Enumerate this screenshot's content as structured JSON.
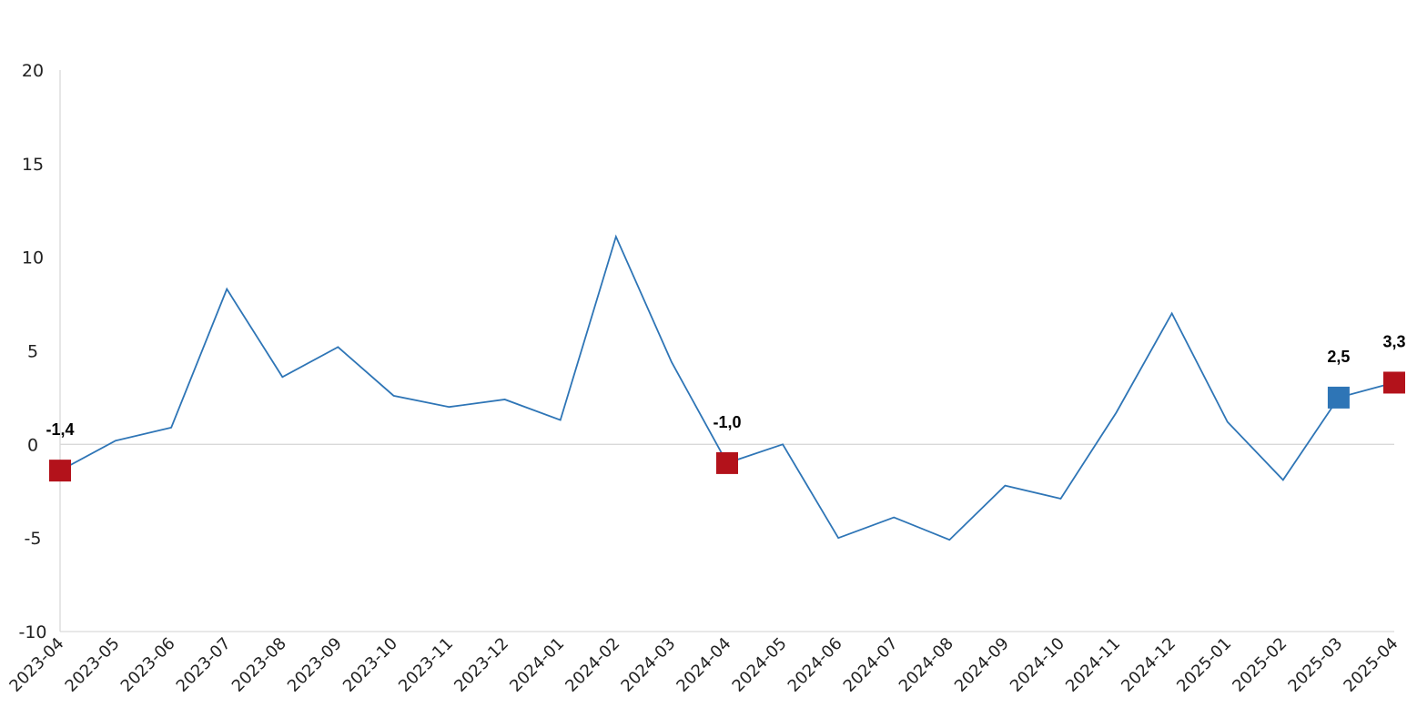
{
  "chart_data": {
    "type": "line",
    "title": "",
    "xlabel": "",
    "ylabel": "",
    "ylim": [
      -10,
      20
    ],
    "yticks": [
      "20",
      "15",
      "10",
      "5",
      "0",
      "-5",
      "-10"
    ],
    "ytick_values": [
      20,
      15,
      10,
      5,
      0,
      -5,
      -10
    ],
    "grid": false,
    "zero_line": true,
    "legend": "none",
    "line_color": "#2e75b6",
    "highlight_colors": {
      "red": "#b3121b",
      "blue": "#2e75b6"
    },
    "categories": [
      "2023-04",
      "2023-05",
      "2023-06",
      "2023-07",
      "2023-08",
      "2023-09",
      "2023-10",
      "2023-11",
      "2023-12",
      "2024-01",
      "2024-02",
      "2024-03",
      "2024-04",
      "2024-05",
      "2024-06",
      "2024-07",
      "2024-08",
      "2024-09",
      "2024-10",
      "2024-11",
      "2024-12",
      "2025-01",
      "2025-02",
      "2025-03",
      "2025-04"
    ],
    "series": [
      {
        "values": [
          -1.4,
          0.2,
          0.9,
          8.3,
          3.6,
          5.2,
          2.6,
          2.0,
          2.4,
          1.3,
          11.1,
          4.4,
          -1.0,
          0.0,
          -5.0,
          -3.9,
          -5.1,
          -2.2,
          -2.9,
          1.7,
          7.0,
          1.2,
          -1.9,
          2.5,
          3.3
        ]
      }
    ],
    "highlights": [
      {
        "category": "2023-04",
        "value": -1.4,
        "label": "-1,4",
        "color": "red"
      },
      {
        "category": "2024-04",
        "value": -1.0,
        "label": "-1,0",
        "color": "red"
      },
      {
        "category": "2025-03",
        "value": 2.5,
        "label": "2,5",
        "color": "blue"
      },
      {
        "category": "2025-04",
        "value": 3.3,
        "label": "3,3",
        "color": "red"
      }
    ]
  }
}
